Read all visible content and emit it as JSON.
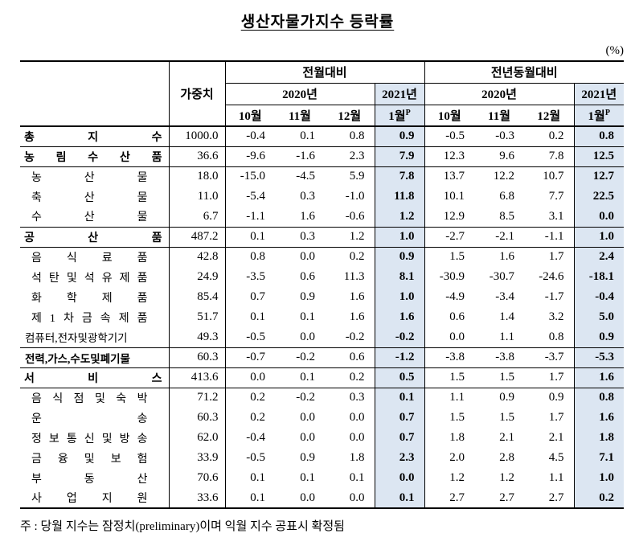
{
  "page": {
    "title": "생산자물가지수 등락률",
    "unit_label": "(%)",
    "footnote": "주 : 당월 지수는 잠정치(preliminary)이며 익월 지수 공표시 확정됨"
  },
  "table": {
    "col_headers": {
      "weight": "가중치",
      "group_mom": "전월대비",
      "group_yoy": "전년동월대비",
      "year2020": "2020년",
      "year2021": "2021년",
      "months2020": [
        "10월",
        "11월",
        "12월"
      ],
      "month2021": "1월",
      "prelim_mark": "P"
    },
    "highlight_color": "#dce6f2",
    "rows": [
      {
        "type": "major",
        "label": "총 지 수",
        "weight": "1000.0",
        "mom": [
          "-0.4",
          "0.1",
          "0.8",
          "0.9"
        ],
        "yoy": [
          "-0.5",
          "-0.3",
          "0.2",
          "0.8"
        ]
      },
      {
        "type": "major",
        "label": "농 림 수 산 품",
        "weight": "36.6",
        "mom": [
          "-9.6",
          "-1.6",
          "2.3",
          "7.9"
        ],
        "yoy": [
          "12.3",
          "9.6",
          "7.8",
          "12.5"
        ]
      },
      {
        "type": "sub",
        "label": "농 산 물",
        "weight": "18.0",
        "mom": [
          "-15.0",
          "-4.5",
          "5.9",
          "7.8"
        ],
        "yoy": [
          "13.7",
          "12.2",
          "10.7",
          "12.7"
        ]
      },
      {
        "type": "sub",
        "label": "축 산 물",
        "weight": "11.0",
        "mom": [
          "-5.4",
          "0.3",
          "-1.0",
          "11.8"
        ],
        "yoy": [
          "10.1",
          "6.8",
          "7.7",
          "22.5"
        ]
      },
      {
        "type": "sub",
        "label": "수 산 물",
        "weight": "6.7",
        "mom": [
          "-1.1",
          "1.6",
          "-0.6",
          "1.2"
        ],
        "yoy": [
          "12.9",
          "8.5",
          "3.1",
          "0.0"
        ]
      },
      {
        "type": "major",
        "label": "공 산 품",
        "weight": "487.2",
        "mom": [
          "0.1",
          "0.3",
          "1.2",
          "1.0"
        ],
        "yoy": [
          "-2.7",
          "-2.1",
          "-1.1",
          "1.0"
        ]
      },
      {
        "type": "sub",
        "label": "음 식 료 품",
        "weight": "42.8",
        "mom": [
          "0.8",
          "0.0",
          "0.2",
          "0.9"
        ],
        "yoy": [
          "1.5",
          "1.6",
          "1.7",
          "2.4"
        ]
      },
      {
        "type": "sub",
        "label": "석 탄 및 석 유 제 품",
        "weight": "24.9",
        "mom": [
          "-3.5",
          "0.6",
          "11.3",
          "8.1"
        ],
        "yoy": [
          "-30.9",
          "-30.7",
          "-24.6",
          "-18.1"
        ]
      },
      {
        "type": "sub",
        "label": "화 학 제 품",
        "weight": "85.4",
        "mom": [
          "0.7",
          "0.9",
          "1.6",
          "1.0"
        ],
        "yoy": [
          "-4.9",
          "-3.4",
          "-1.7",
          "-0.4"
        ]
      },
      {
        "type": "sub",
        "label": "제 1 차 금 속 제 품",
        "weight": "51.7",
        "mom": [
          "0.1",
          "0.1",
          "1.6",
          "1.6"
        ],
        "yoy": [
          "0.6",
          "1.4",
          "3.2",
          "5.0"
        ]
      },
      {
        "type": "sub",
        "label": "컴퓨터,전자및광학기기",
        "weight": "49.3",
        "mom": [
          "-0.5",
          "0.0",
          "-0.2",
          "-0.2"
        ],
        "yoy": [
          "0.0",
          "1.1",
          "0.8",
          "0.9"
        ]
      },
      {
        "type": "major",
        "label": "전력,가스,수도및폐기물",
        "weight": "60.3",
        "mom": [
          "-0.7",
          "-0.2",
          "0.6",
          "-1.2"
        ],
        "yoy": [
          "-3.8",
          "-3.8",
          "-3.7",
          "-5.3"
        ]
      },
      {
        "type": "major",
        "label": "서 비 스",
        "weight": "413.6",
        "mom": [
          "0.0",
          "0.1",
          "0.2",
          "0.5"
        ],
        "yoy": [
          "1.5",
          "1.5",
          "1.7",
          "1.6"
        ]
      },
      {
        "type": "sub",
        "label": "음 식 점 및 숙 박",
        "weight": "71.2",
        "mom": [
          "0.2",
          "-0.2",
          "0.3",
          "0.1"
        ],
        "yoy": [
          "1.1",
          "0.9",
          "0.9",
          "0.8"
        ]
      },
      {
        "type": "sub",
        "label": "운 송",
        "weight": "60.3",
        "mom": [
          "0.2",
          "0.0",
          "0.0",
          "0.7"
        ],
        "yoy": [
          "1.5",
          "1.5",
          "1.7",
          "1.6"
        ]
      },
      {
        "type": "sub",
        "label": "정 보 통 신 및 방 송",
        "weight": "62.0",
        "mom": [
          "-0.4",
          "0.0",
          "0.0",
          "0.7"
        ],
        "yoy": [
          "1.8",
          "2.1",
          "2.1",
          "1.8"
        ]
      },
      {
        "type": "sub",
        "label": "금 융 및 보 험",
        "weight": "33.9",
        "mom": [
          "-0.5",
          "0.9",
          "1.8",
          "2.3"
        ],
        "yoy": [
          "2.0",
          "2.8",
          "4.5",
          "7.1"
        ]
      },
      {
        "type": "sub",
        "label": "부 동 산",
        "weight": "70.6",
        "mom": [
          "0.1",
          "0.1",
          "0.1",
          "0.0"
        ],
        "yoy": [
          "1.2",
          "1.2",
          "1.1",
          "1.0"
        ]
      },
      {
        "type": "sub",
        "label": "사 업 지 원",
        "weight": "33.6",
        "mom": [
          "0.1",
          "0.0",
          "0.0",
          "0.1"
        ],
        "yoy": [
          "2.7",
          "2.7",
          "2.7",
          "0.2"
        ]
      }
    ]
  }
}
